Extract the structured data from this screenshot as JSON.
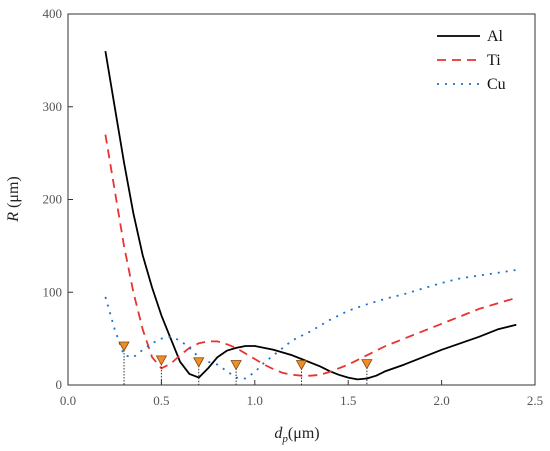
{
  "chart_data": {
    "type": "line",
    "title": "",
    "xlabel": {
      "base": "d",
      "sub": "p",
      "unit": "(μm)"
    },
    "ylabel": {
      "base": "R",
      "unit": " (μm)"
    },
    "xlim": [
      0.0,
      2.5
    ],
    "ylim": [
      0,
      400
    ],
    "x_ticks": [
      "0.0",
      "0.5",
      "1.0",
      "1.5",
      "2.0",
      "2.5"
    ],
    "y_ticks": [
      "0",
      "100",
      "200",
      "300",
      "400"
    ],
    "grid": false,
    "legend_position": "top-right",
    "series": [
      {
        "name": "Al",
        "color": "#000000",
        "dash": "solid",
        "x": [
          0.2,
          0.25,
          0.3,
          0.35,
          0.4,
          0.45,
          0.5,
          0.55,
          0.6,
          0.65,
          0.7,
          0.75,
          0.8,
          0.85,
          0.9,
          0.95,
          1.0,
          1.05,
          1.1,
          1.15,
          1.2,
          1.25,
          1.3,
          1.35,
          1.4,
          1.45,
          1.5,
          1.55,
          1.6,
          1.65,
          1.7,
          1.8,
          1.9,
          2.0,
          2.1,
          2.2,
          2.3,
          2.4
        ],
        "y": [
          360,
          300,
          240,
          185,
          140,
          105,
          75,
          50,
          25,
          12,
          8,
          18,
          30,
          37,
          40,
          42,
          42,
          40,
          38,
          35,
          32,
          28,
          24,
          20,
          15,
          11,
          8,
          6,
          7,
          10,
          15,
          22,
          30,
          38,
          45,
          52,
          60,
          65
        ]
      },
      {
        "name": "Ti",
        "color": "#e8332e",
        "dash": "9,6",
        "x": [
          0.2,
          0.25,
          0.3,
          0.35,
          0.4,
          0.45,
          0.5,
          0.55,
          0.6,
          0.65,
          0.7,
          0.75,
          0.8,
          0.85,
          0.9,
          0.95,
          1.0,
          1.05,
          1.1,
          1.15,
          1.2,
          1.25,
          1.3,
          1.35,
          1.4,
          1.5,
          1.6,
          1.7,
          1.8,
          1.9,
          2.0,
          2.1,
          2.2,
          2.3,
          2.4
        ],
        "y": [
          270,
          210,
          150,
          100,
          60,
          30,
          18,
          23,
          32,
          40,
          45,
          47,
          47,
          44,
          40,
          34,
          28,
          22,
          17,
          13,
          11,
          10,
          10,
          11,
          14,
          22,
          32,
          42,
          50,
          58,
          66,
          74,
          82,
          88,
          94
        ]
      },
      {
        "name": "Cu",
        "color": "#1a6fd0",
        "dash": "2,6",
        "x": [
          0.2,
          0.25,
          0.3,
          0.35,
          0.4,
          0.45,
          0.5,
          0.55,
          0.6,
          0.65,
          0.7,
          0.75,
          0.8,
          0.85,
          0.9,
          0.95,
          1.0,
          1.05,
          1.1,
          1.15,
          1.2,
          1.3,
          1.4,
          1.5,
          1.6,
          1.7,
          1.8,
          1.9,
          2.0,
          2.1,
          2.2,
          2.3,
          2.4
        ],
        "y": [
          95,
          60,
          32,
          30,
          38,
          45,
          50,
          52,
          48,
          40,
          30,
          25,
          22,
          15,
          8,
          7,
          14,
          24,
          32,
          40,
          48,
          58,
          70,
          80,
          87,
          93,
          98,
          104,
          110,
          115,
          118,
          121,
          124
        ]
      }
    ],
    "markers": [
      {
        "x": 0.3,
        "y": 41
      },
      {
        "x": 0.5,
        "y": 26
      },
      {
        "x": 0.7,
        "y": 24
      },
      {
        "x": 0.9,
        "y": 21
      },
      {
        "x": 1.25,
        "y": 21
      },
      {
        "x": 1.6,
        "y": 22
      }
    ],
    "marker_color": "#f28c28"
  }
}
